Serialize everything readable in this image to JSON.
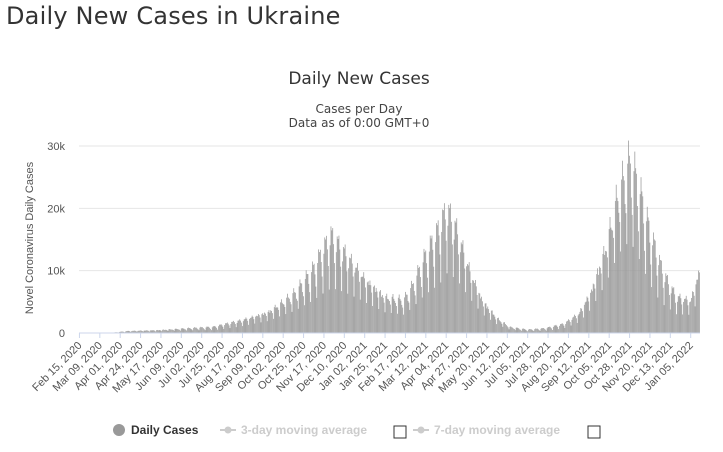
{
  "page": {
    "heading": "Daily New Cases in Ukraine"
  },
  "colors": {
    "bar": "#999999",
    "grid": "#e6e6e6",
    "inactive": "#cccccc"
  },
  "legend": {
    "items": [
      {
        "label": "Daily Cases",
        "active": true,
        "checkbox": false
      },
      {
        "label": "3-day moving average",
        "active": false,
        "checkbox": true
      },
      {
        "label": "7-day moving average",
        "active": false,
        "checkbox": true
      }
    ]
  },
  "chart_data": {
    "type": "bar",
    "title": "Daily New Cases",
    "subtitle": "Cases per Day",
    "subtitle2": "Data as of 0:00 GMT+0",
    "ylabel": "Novel Coronavirus Daily Cases",
    "ylim": [
      0,
      30000
    ],
    "yticks": [
      0,
      10000,
      20000,
      30000
    ],
    "ytick_labels": [
      "0",
      "10k",
      "20k",
      "30k"
    ],
    "start_date": "2020-02-15",
    "end_date": "2022-01-15",
    "grid": true,
    "xtick_labels": [
      "Feb 15, 2020",
      "Mar 09, 2020",
      "Apr 01, 2020",
      "Apr 24, 2020",
      "May 17, 2020",
      "Jun 09, 2020",
      "Jul 02, 2020",
      "Jul 25, 2020",
      "Aug 17, 2020",
      "Sep 09, 2020",
      "Oct 02, 2020",
      "Oct 25, 2020",
      "Nov 17, 2020",
      "Dec 10, 2020",
      "Jan 02, 2021",
      "Jan 25, 2021",
      "Feb 17, 2021",
      "Mar 12, 2021",
      "Apr 04, 2021",
      "Apr 27, 2021",
      "May 20, 2021",
      "Jun 12, 2021",
      "Jul 05, 2021",
      "Jul 28, 2021",
      "Aug 20, 2021",
      "Sep 12, 2021",
      "Oct 05, 2021",
      "Oct 28, 2021",
      "Nov 20, 2021",
      "Dec 13, 2021",
      "Jan 05, 2022"
    ],
    "trend_points": [
      {
        "date": "2020-02-15",
        "value": 0
      },
      {
        "date": "2020-03-20",
        "value": 0
      },
      {
        "date": "2020-04-10",
        "value": 300
      },
      {
        "date": "2020-05-15",
        "value": 450
      },
      {
        "date": "2020-06-15",
        "value": 700
      },
      {
        "date": "2020-07-15",
        "value": 900
      },
      {
        "date": "2020-08-15",
        "value": 1900
      },
      {
        "date": "2020-09-15",
        "value": 3200
      },
      {
        "date": "2020-10-15",
        "value": 6000
      },
      {
        "date": "2020-11-05",
        "value": 9500
      },
      {
        "date": "2020-11-25",
        "value": 14500
      },
      {
        "date": "2020-12-05",
        "value": 13000
      },
      {
        "date": "2020-12-20",
        "value": 10500
      },
      {
        "date": "2021-01-05",
        "value": 8000
      },
      {
        "date": "2021-01-25",
        "value": 5500
      },
      {
        "date": "2021-02-15",
        "value": 5000
      },
      {
        "date": "2021-02-25",
        "value": 7000
      },
      {
        "date": "2021-03-10",
        "value": 11000
      },
      {
        "date": "2021-03-25",
        "value": 15000
      },
      {
        "date": "2021-04-05",
        "value": 18500
      },
      {
        "date": "2021-04-15",
        "value": 16000
      },
      {
        "date": "2021-05-01",
        "value": 9500
      },
      {
        "date": "2021-05-15",
        "value": 5000
      },
      {
        "date": "2021-06-01",
        "value": 2200
      },
      {
        "date": "2021-06-15",
        "value": 900
      },
      {
        "date": "2021-07-05",
        "value": 500
      },
      {
        "date": "2021-07-25",
        "value": 700
      },
      {
        "date": "2021-08-15",
        "value": 1400
      },
      {
        "date": "2021-09-01",
        "value": 3000
      },
      {
        "date": "2021-09-15",
        "value": 6500
      },
      {
        "date": "2021-10-01",
        "value": 13000
      },
      {
        "date": "2021-10-15",
        "value": 21000
      },
      {
        "date": "2021-10-28",
        "value": 25500
      },
      {
        "date": "2021-11-05",
        "value": 23000
      },
      {
        "date": "2021-11-20",
        "value": 15000
      },
      {
        "date": "2021-12-05",
        "value": 9000
      },
      {
        "date": "2021-12-20",
        "value": 5500
      },
      {
        "date": "2022-01-05",
        "value": 5000
      },
      {
        "date": "2022-01-15",
        "value": 9500
      }
    ]
  }
}
